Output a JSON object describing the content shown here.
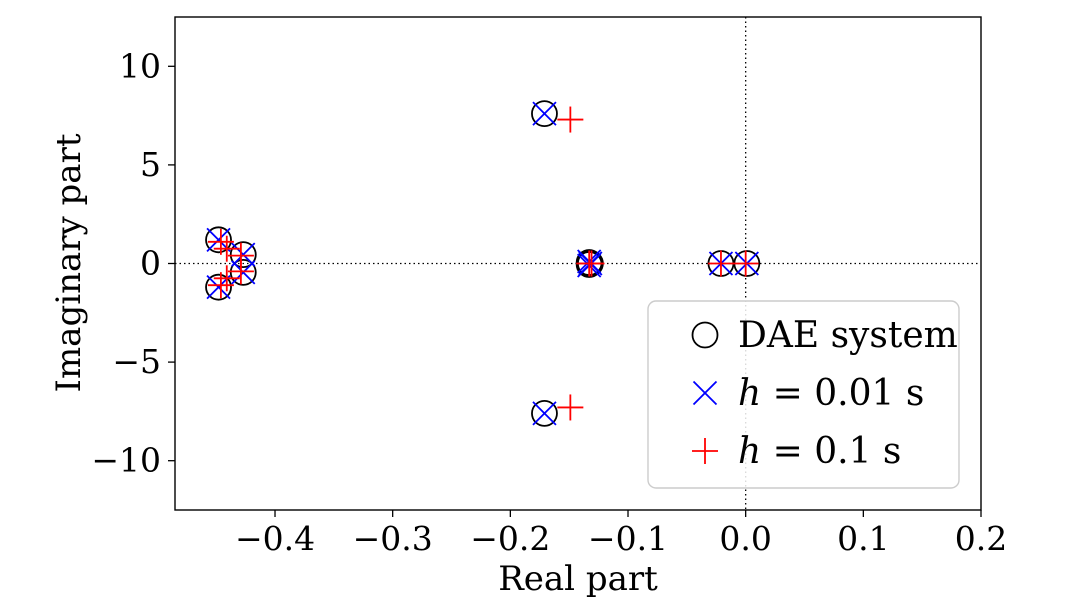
{
  "chart_data": {
    "type": "scatter",
    "title": "",
    "xlabel": "Real part",
    "ylabel": "Imaginary part",
    "xlim": [
      -0.485,
      0.2
    ],
    "ylim": [
      -12.5,
      12.5
    ],
    "grid": false,
    "reference_lines": {
      "x": 0,
      "y": 0,
      "style": "dotted"
    },
    "x_ticks": [
      -0.4,
      -0.3,
      -0.2,
      -0.1,
      0.0,
      0.1,
      0.2
    ],
    "x_tick_labels": [
      "−0.4",
      "−0.3",
      "−0.2",
      "−0.1",
      "0.0",
      "0.1",
      "0.2"
    ],
    "y_ticks": [
      -10,
      -5,
      0,
      5,
      10
    ],
    "y_tick_labels": [
      "−10",
      "−5",
      "0",
      "5",
      "10"
    ],
    "legend": {
      "position": "lower-right",
      "entries": [
        {
          "series": "DAE system",
          "marker": "circle",
          "label": [
            {
              "text": "DAE system",
              "italic": false
            }
          ]
        },
        {
          "series": "h = 0.01 s",
          "marker": "x",
          "label": [
            {
              "text": "h",
              "italic": true
            },
            {
              "text": " = 0.01 s",
              "italic": false
            }
          ]
        },
        {
          "series": "h = 0.1 s",
          "marker": "plus",
          "label": [
            {
              "text": "h",
              "italic": true
            },
            {
              "text": " = 0.1 s",
              "italic": false
            }
          ]
        }
      ]
    },
    "series": [
      {
        "name": "DAE system",
        "marker": "circle",
        "color": "#000000",
        "points": [
          [
            -0.171,
            7.6
          ],
          [
            -0.171,
            -7.6
          ],
          [
            -0.133,
            0.05
          ],
          [
            -0.133,
            -0.05
          ],
          [
            -0.132,
            0.0
          ],
          [
            -0.021,
            0.0
          ],
          [
            0.001,
            0.0
          ],
          [
            -0.448,
            1.2
          ],
          [
            -0.448,
            -1.2
          ],
          [
            -0.427,
            0.45
          ],
          [
            -0.427,
            -0.45
          ]
        ]
      },
      {
        "name": "h = 0.01 s",
        "marker": "x",
        "color": "#0000ff",
        "points": [
          [
            -0.171,
            7.6
          ],
          [
            -0.171,
            -7.6
          ],
          [
            -0.133,
            0.1
          ],
          [
            -0.133,
            -0.1
          ],
          [
            -0.132,
            0.0
          ],
          [
            -0.021,
            0.0
          ],
          [
            0.001,
            0.0
          ],
          [
            -0.448,
            1.2
          ],
          [
            -0.448,
            -1.2
          ],
          [
            -0.427,
            0.45
          ],
          [
            -0.427,
            -0.45
          ]
        ]
      },
      {
        "name": "h = 0.1 s",
        "marker": "plus",
        "color": "#ff0000",
        "points": [
          [
            -0.149,
            7.3
          ],
          [
            -0.149,
            -7.3
          ],
          [
            -0.133,
            0.0
          ],
          [
            -0.131,
            0.0
          ],
          [
            -0.021,
            0.0
          ],
          [
            0.0,
            0.0
          ],
          [
            -0.446,
            1.1
          ],
          [
            -0.446,
            -1.1
          ],
          [
            -0.441,
            0.75
          ],
          [
            -0.441,
            -0.75
          ],
          [
            -0.429,
            0.4
          ],
          [
            -0.429,
            -0.4
          ]
        ]
      }
    ]
  }
}
